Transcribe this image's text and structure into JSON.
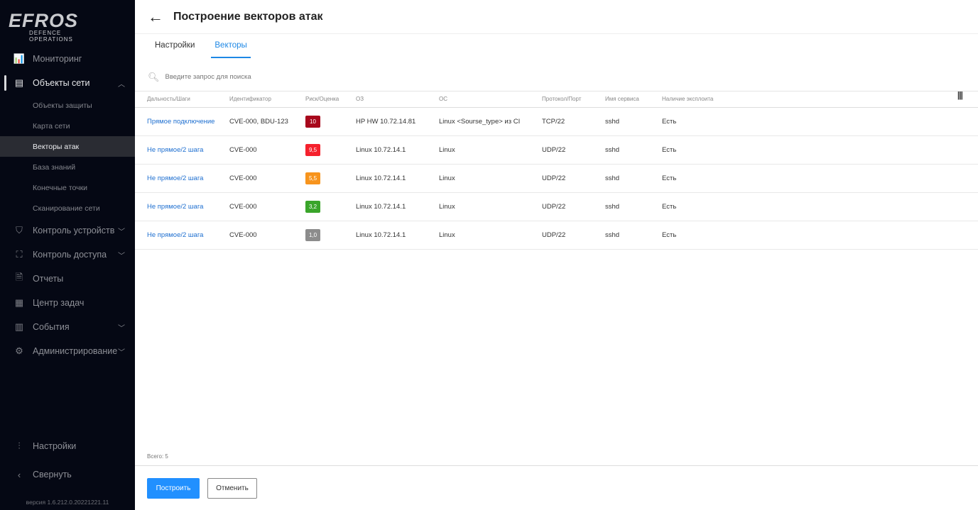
{
  "sidebar": {
    "logo": "EFROS",
    "logo_sub": "DEFENCE OPERATIONS",
    "items": [
      {
        "label": "Мониторинг",
        "icon": "chart-icon"
      },
      {
        "label": "Объекты сети",
        "icon": "server-icon"
      }
    ],
    "sub_items": [
      "Объекты защиты",
      "Карта сети",
      "Векторы атак",
      "База знаний",
      "Конечные точки",
      "Сканирование сети"
    ],
    "items2": [
      {
        "label": "Контроль устройств",
        "icon": "shield-icon"
      },
      {
        "label": "Контроль доступа",
        "icon": "scan-icon"
      },
      {
        "label": "Отчеты",
        "icon": "document-icon"
      },
      {
        "label": "Центр задач",
        "icon": "notepad-icon"
      },
      {
        "label": "События",
        "icon": "calendar-icon"
      },
      {
        "label": "Администрирование",
        "icon": "gear-icon"
      }
    ],
    "settings": "Настройки",
    "collapse": "Свернуть",
    "version": "версия 1.6.212.0.20221221.11"
  },
  "header": {
    "title": "Построение векторов атак"
  },
  "tabs": [
    "Настройки",
    "Векторы"
  ],
  "search": {
    "placeholder": "Введите запрос для поиска"
  },
  "table": {
    "columns": [
      "Дальность/Шаги",
      "Идентификатор",
      "Риск/Оценка",
      "ОЗ",
      "ОС",
      "Протокол/Порт",
      "Имя сервиса",
      "Наличие эксплоита"
    ],
    "rows": [
      [
        "Прямое подключение",
        "CVE-000, BDU-123",
        "10",
        "HP HW 10.72.14.81",
        "Linux <Sourse_type> из CI",
        "TCP/22",
        "sshd",
        "Есть"
      ],
      [
        "Не прямое/2 шага",
        "CVE-000",
        "9,5",
        "Linux 10.72.14.1",
        "Linux",
        "UDP/22",
        "sshd",
        "Есть"
      ],
      [
        "Не прямое/2 шага",
        "CVE-000",
        "5,5",
        "Linux 10.72.14.1",
        "Linux",
        "UDP/22",
        "sshd",
        "Есть"
      ],
      [
        "Не прямое/2 шага",
        "CVE-000",
        "3,2",
        "Linux 10.72.14.1",
        "Linux",
        "UDP/22",
        "sshd",
        "Есть"
      ],
      [
        "Не прямое/2 шага",
        "CVE-000",
        "1,0",
        "Linux 10.72.14.1",
        "Linux",
        "UDP/22",
        "sshd",
        "Есть"
      ]
    ],
    "risk_colors": [
      "#a8081c",
      "#f5212d",
      "#f7941d",
      "#3aa52a",
      "#8c8c8c"
    ]
  },
  "total": "Всего: 5",
  "buttons": {
    "build": "Построить",
    "cancel": "Отменить"
  }
}
